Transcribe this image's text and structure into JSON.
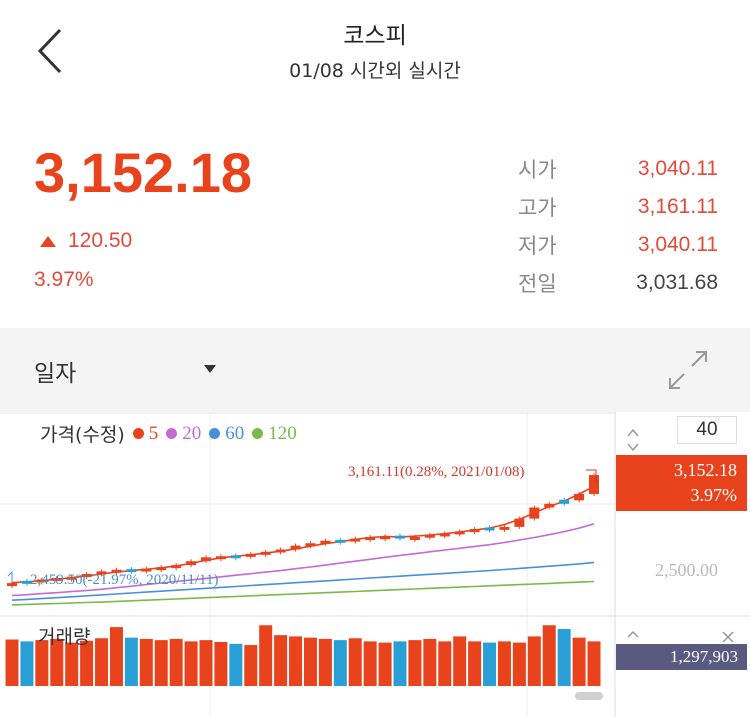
{
  "header": {
    "title": "코스피",
    "subtitle": "01/08 시간외 실시간"
  },
  "quote": {
    "price": "3,152.18",
    "change": "120.50",
    "change_pct": "3.97%",
    "ohlc": [
      {
        "label": "시가",
        "value": "3,040.11"
      },
      {
        "label": "고가",
        "value": "3,161.11"
      },
      {
        "label": "저가",
        "value": "3,040.11"
      },
      {
        "label": "전일",
        "value": "3,031.68"
      }
    ]
  },
  "toolbar": {
    "period": "일자"
  },
  "chart": {
    "legend_label": "가격(수정)",
    "ma_items": [
      {
        "value": "5",
        "color": "#e8431c"
      },
      {
        "value": "20",
        "color": "#c46ad6"
      },
      {
        "value": "60",
        "color": "#4a90d9"
      },
      {
        "value": "120",
        "color": "#7cb84a"
      }
    ],
    "zoom": "40",
    "current_price": "3,152.18",
    "current_pct": "3.97%",
    "axis_tick": "2,500.00",
    "high_note": "3,161.11(0.28%, 2021/01/08)",
    "low_note": "2,459.50(-21.97%, 2020/11/11)",
    "volume_label": "거래량",
    "volume_value": "1,297,903"
  },
  "chart_data": {
    "type": "candlestick",
    "x_start": "2020/11/11",
    "x_end": "2021/01/08",
    "close": [
      2459.5,
      2470,
      2483,
      2493,
      2500,
      2518,
      2535,
      2545,
      2543,
      2553,
      2562,
      2575,
      2600,
      2625,
      2632,
      2634,
      2647,
      2660,
      2675,
      2700,
      2715,
      2731,
      2733,
      2745,
      2755,
      2760,
      2745,
      2755,
      2770,
      2778,
      2791,
      2806,
      2812,
      2820,
      2873,
      2944,
      2968,
      2990,
      3031,
      3152.18
    ],
    "up": [
      true,
      false,
      true,
      true,
      true,
      true,
      true,
      true,
      false,
      true,
      true,
      true,
      true,
      true,
      true,
      false,
      true,
      true,
      true,
      true,
      true,
      true,
      false,
      true,
      true,
      true,
      false,
      true,
      true,
      true,
      true,
      true,
      false,
      true,
      true,
      true,
      true,
      false,
      true,
      true
    ],
    "ma5": [
      2462,
      2468,
      2475,
      2484,
      2494,
      2506,
      2518,
      2530,
      2540,
      2548,
      2558,
      2570,
      2586,
      2605,
      2622,
      2632,
      2641,
      2652,
      2664,
      2679,
      2696,
      2713,
      2725,
      2740,
      2752,
      2758,
      2756,
      2760,
      2768,
      2776,
      2788,
      2800,
      2812,
      2835,
      2868,
      2910,
      2950,
      2985,
      3030,
      3080
    ],
    "ma20": [
      2380,
      2385,
      2392,
      2398,
      2405,
      2412,
      2420,
      2430,
      2440,
      2450,
      2460,
      2470,
      2480,
      2490,
      2500,
      2510,
      2520,
      2530,
      2540,
      2552,
      2563,
      2575,
      2588,
      2600,
      2612,
      2625,
      2637,
      2648,
      2660,
      2672,
      2683,
      2695,
      2706,
      2720,
      2736,
      2752,
      2770,
      2790,
      2812,
      2840
    ],
    "ma60": [
      2350,
      2355,
      2360,
      2366,
      2372,
      2378,
      2384,
      2390,
      2396,
      2402,
      2408,
      2414,
      2420,
      2426,
      2432,
      2438,
      2444,
      2450,
      2456,
      2462,
      2468,
      2474,
      2480,
      2486,
      2492,
      2498,
      2504,
      2510,
      2516,
      2522,
      2528,
      2534,
      2540,
      2547,
      2554,
      2561,
      2568,
      2575,
      2583,
      2592
    ],
    "ma120": [
      2320,
      2323,
      2326,
      2329,
      2332,
      2335,
      2338,
      2342,
      2346,
      2350,
      2354,
      2358,
      2362,
      2366,
      2370,
      2374,
      2378,
      2382,
      2386,
      2390,
      2394,
      2398,
      2402,
      2406,
      2410,
      2414,
      2418,
      2422,
      2426,
      2430,
      2434,
      2438,
      2442,
      2446,
      2450,
      2454,
      2458,
      2462,
      2466,
      2470
    ],
    "volume": [
      0.75,
      0.72,
      0.74,
      0.76,
      0.7,
      0.73,
      0.77,
      0.95,
      0.78,
      0.76,
      0.74,
      0.76,
      0.72,
      0.74,
      0.71,
      0.68,
      0.66,
      0.98,
      0.82,
      0.8,
      0.78,
      0.76,
      0.74,
      0.77,
      0.72,
      0.7,
      0.72,
      0.74,
      0.76,
      0.72,
      0.8,
      0.72,
      0.7,
      0.72,
      0.7,
      0.8,
      0.98,
      0.92,
      0.78,
      0.72
    ],
    "ylim": [
      2300,
      3300
    ]
  }
}
